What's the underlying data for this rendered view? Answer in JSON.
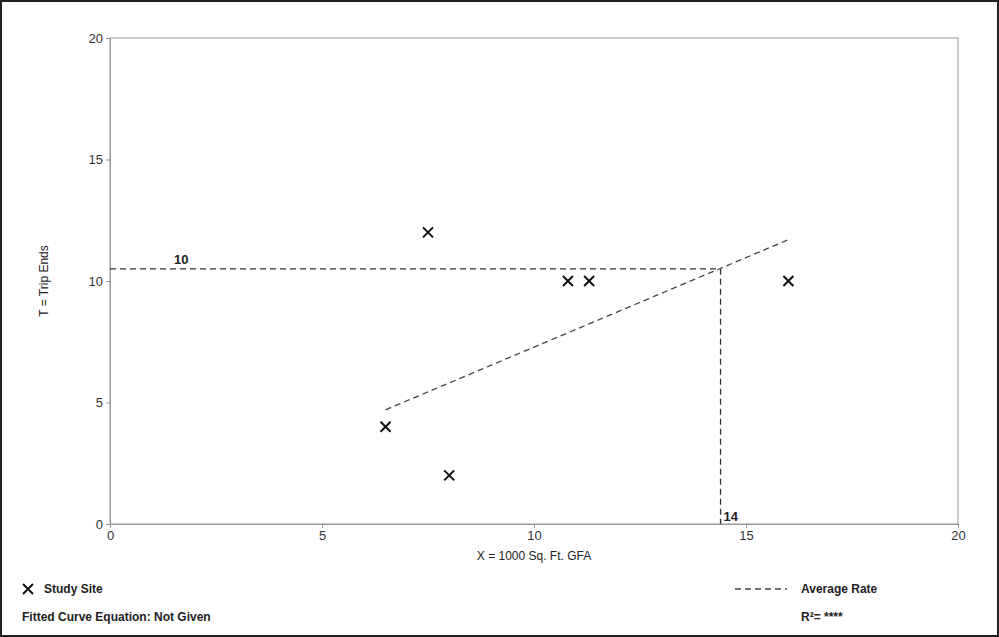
{
  "chart_data": {
    "type": "scatter",
    "x_label": "X = 1000 Sq. Ft. GFA",
    "y_label": "T = Trip Ends",
    "xlim": [
      0,
      20
    ],
    "ylim": [
      0,
      20
    ],
    "xticks": [
      0,
      5,
      10,
      15,
      20
    ],
    "yticks": [
      0,
      5,
      10,
      15,
      20
    ],
    "legend": "bottom",
    "series": [
      {
        "name": "Study Site",
        "type": "scatter",
        "marker": "x",
        "color": "#111111",
        "x": [
          6.5,
          7.5,
          8,
          10.8,
          11.3,
          16
        ],
        "values": [
          4,
          12,
          2,
          10,
          10,
          10
        ]
      },
      {
        "name": "Average Rate",
        "type": "line",
        "line_style": "dashed",
        "color": "#444444",
        "x": [
          6.5,
          16
        ],
        "values": [
          4.7,
          11.7
        ]
      }
    ],
    "annotations": [
      {
        "x": 14.4,
        "y": 10.5,
        "x_text": "14",
        "y_text": "10",
        "line_style": "dashed",
        "color": "#333333"
      }
    ],
    "footer_left": "Fitted Curve Equation: Not Given",
    "footer_right": "R²= ****"
  }
}
